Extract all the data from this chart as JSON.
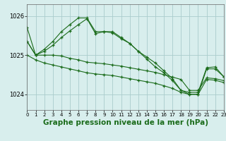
{
  "background_color": "#d8eeed",
  "plot_bg_color": "#d8eeed",
  "grid_color": "#aacccc",
  "line_color": "#1a6b1a",
  "xlabel": "Graphe pression niveau de la mer (hPa)",
  "xlabel_fontsize": 7.5,
  "xlim": [
    0,
    23
  ],
  "ylim": [
    1023.6,
    1026.3
  ],
  "yticks": [
    1024,
    1025,
    1026
  ],
  "xticks": [
    0,
    1,
    2,
    3,
    4,
    5,
    6,
    7,
    8,
    9,
    10,
    11,
    12,
    13,
    14,
    15,
    16,
    17,
    18,
    19,
    20,
    21,
    22,
    23
  ],
  "series": [
    [
      1025.35,
      1025.0,
      1025.0,
      1025.0,
      1024.98,
      1024.92,
      1024.88,
      1024.82,
      1024.8,
      1024.78,
      1024.75,
      1024.72,
      1024.68,
      1024.64,
      1024.6,
      1024.56,
      1024.5,
      1024.44,
      1024.38,
      1024.1,
      1024.1,
      1024.42,
      1024.4,
      1024.35
    ],
    [
      1025.0,
      1024.88,
      1024.8,
      1024.75,
      1024.7,
      1024.65,
      1024.6,
      1024.55,
      1024.52,
      1024.5,
      1024.48,
      1024.44,
      1024.4,
      1024.36,
      1024.32,
      1024.28,
      1024.22,
      1024.15,
      1024.05,
      1024.0,
      1024.0,
      1024.38,
      1024.36,
      1024.3
    ],
    [
      1025.35,
      1025.0,
      1025.1,
      1025.25,
      1025.45,
      1025.62,
      1025.78,
      1025.93,
      1025.55,
      1025.6,
      1025.6,
      1025.45,
      1025.3,
      1025.1,
      1024.9,
      1024.7,
      1024.55,
      1024.35,
      1024.1,
      1024.0,
      1024.0,
      1024.65,
      1024.65,
      1024.45
    ],
    [
      1025.7,
      1025.0,
      1025.15,
      1025.35,
      1025.6,
      1025.78,
      1025.95,
      1025.95,
      1025.6,
      1025.6,
      1025.57,
      1025.42,
      1025.3,
      1025.1,
      1024.95,
      1024.8,
      1024.6,
      1024.4,
      1024.1,
      1024.05,
      1024.05,
      1024.68,
      1024.7,
      1024.45
    ]
  ]
}
